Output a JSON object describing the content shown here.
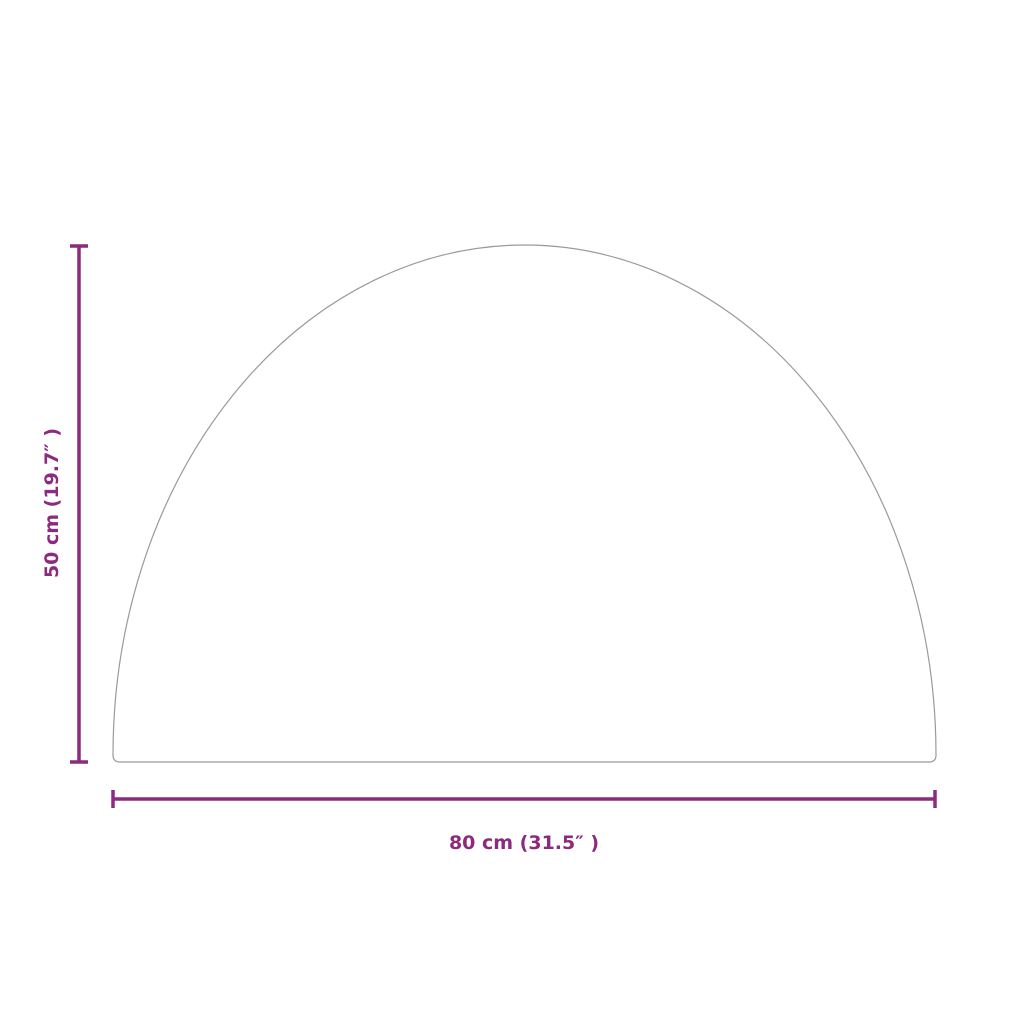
{
  "dimensions": {
    "width_label": "80 cm (31.5″ )",
    "height_label": "50 cm (19.7″ )"
  },
  "colors": {
    "dimension": "#8b2a7e",
    "outline": "#9a9a9a"
  }
}
